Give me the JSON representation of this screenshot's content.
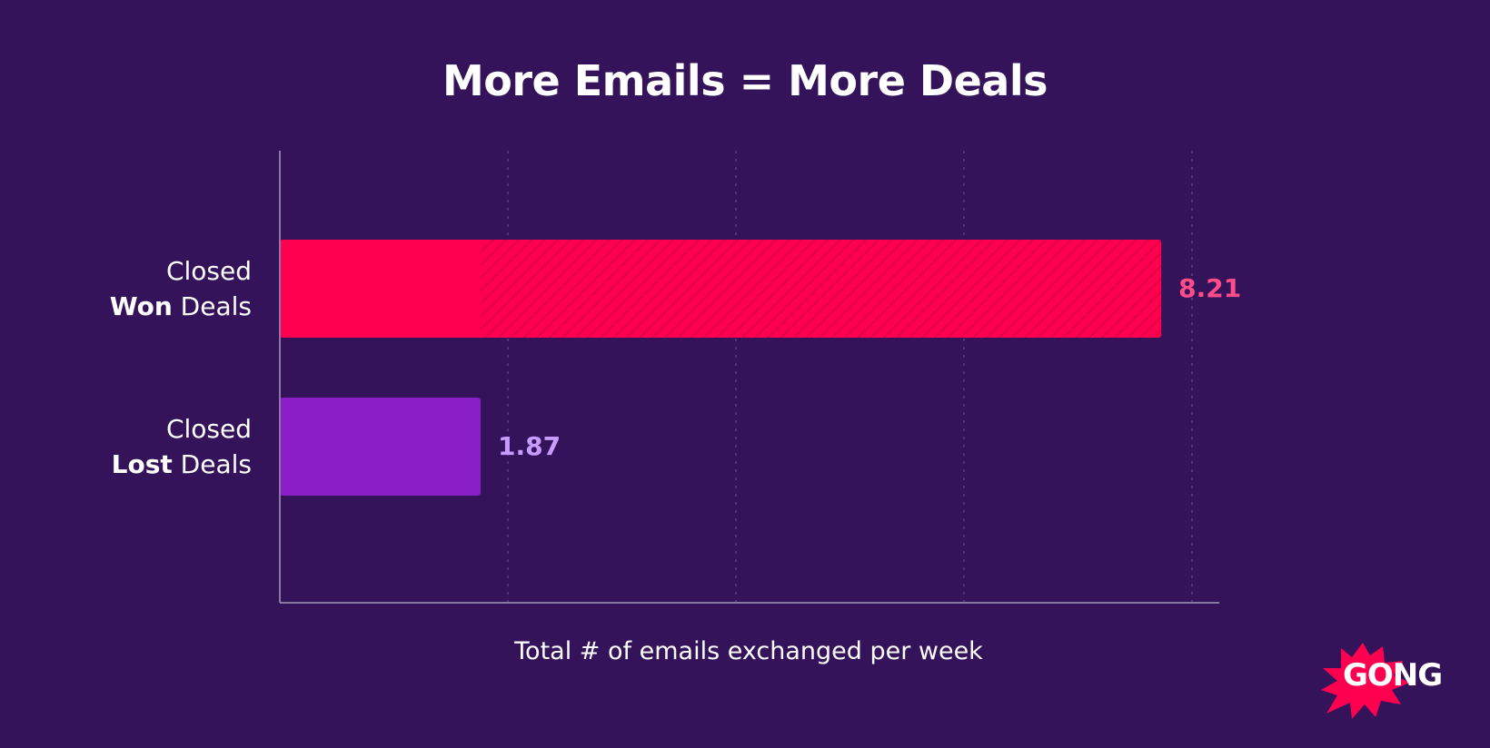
{
  "chart_data": {
    "type": "bar",
    "orientation": "horizontal",
    "title": "More Emails = More Deals",
    "xlabel": "Total # of emails exchanged per week",
    "ylabel": "",
    "xlim": [
      0,
      8.75
    ],
    "grid": true,
    "categories": [
      {
        "line1": "Closed",
        "bold": "Won",
        "rest": " Deals"
      },
      {
        "line1": "Closed",
        "bold": "Lost",
        "rest": " Deals"
      }
    ],
    "values": [
      8.21,
      1.87
    ],
    "value_labels": [
      "8.21",
      "1.87"
    ],
    "colors": {
      "won_bar": "#ff0050",
      "won_label": "#ff4d8a",
      "lost_bar": "#8a1fc8",
      "lost_label": "#c79bff",
      "background": "#35135a",
      "axis": "#8a78a3",
      "grid": "#5a3f7e"
    }
  },
  "brand": {
    "logo_text": "GONG",
    "logo_color": "#ff0050",
    "logo_icon": "starburst-logo"
  }
}
